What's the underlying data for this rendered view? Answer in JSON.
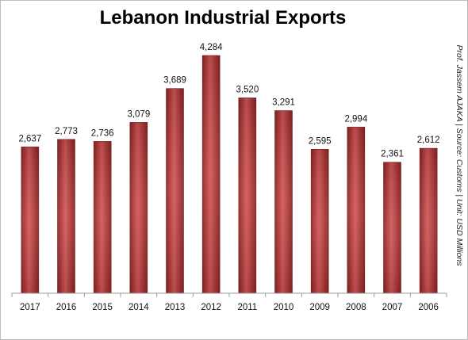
{
  "chart_data": {
    "type": "bar",
    "title": "Lebanon Industrial Exports",
    "side_note": "Prof. Jassem AJAKA | Source: Customs | Unit: USD Millions",
    "categories": [
      "2017",
      "2016",
      "2015",
      "2014",
      "2013",
      "2012",
      "2011",
      "2010",
      "2009",
      "2008",
      "2007",
      "2006"
    ],
    "values": [
      2637,
      2773,
      2736,
      3079,
      3689,
      4284,
      3520,
      3291,
      2595,
      2994,
      2361,
      2612
    ],
    "value_labels": [
      "2,637",
      "2,773",
      "2,736",
      "3,079",
      "3,689",
      "4,284",
      "3,520",
      "3,291",
      "2,595",
      "2,994",
      "2,361",
      "2,612"
    ],
    "ylim": [
      0,
      4284
    ],
    "bar_color": "#b3393a",
    "bar_highlight_color": "#d45656",
    "grid": false,
    "legend": "none"
  }
}
